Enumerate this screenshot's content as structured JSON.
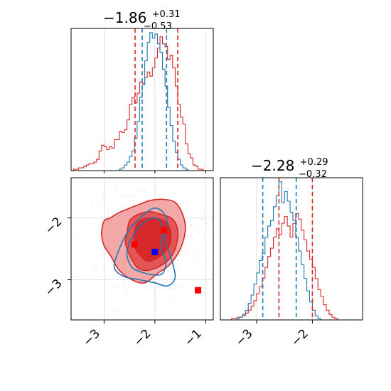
{
  "chart_data": [
    {
      "type": "histogram",
      "panel": "marginal-1",
      "title": {
        "value": "−1.86",
        "upper": "+0.31",
        "lower": "−0.53"
      },
      "xlim": [
        -3.65,
        -0.85
      ],
      "grid": true,
      "series": [
        {
          "color": "#d62728",
          "bins": [
            [
              -3.65,
              0.0
            ],
            [
              -3.6,
              0.01
            ],
            [
              -3.55,
              0.01
            ],
            [
              -3.5,
              0.02
            ],
            [
              -3.45,
              0.02
            ],
            [
              -3.4,
              0.03
            ],
            [
              -3.35,
              0.04
            ],
            [
              -3.3,
              0.05
            ],
            [
              -3.25,
              0.05
            ],
            [
              -3.2,
              0.06
            ],
            [
              -3.15,
              0.08
            ],
            [
              -3.1,
              0.14
            ],
            [
              -3.05,
              0.18
            ],
            [
              -3.0,
              0.17
            ],
            [
              -2.95,
              0.15
            ],
            [
              -2.9,
              0.17
            ],
            [
              -2.85,
              0.16
            ],
            [
              -2.8,
              0.22
            ],
            [
              -2.75,
              0.22
            ],
            [
              -2.7,
              0.28
            ],
            [
              -2.65,
              0.27
            ],
            [
              -2.6,
              0.29
            ],
            [
              -2.55,
              0.36
            ],
            [
              -2.5,
              0.47
            ],
            [
              -2.45,
              0.52
            ],
            [
              -2.4,
              0.48
            ],
            [
              -2.35,
              0.55
            ],
            [
              -2.3,
              0.63
            ],
            [
              -2.25,
              0.62
            ],
            [
              -2.2,
              0.66
            ],
            [
              -2.15,
              0.7
            ],
            [
              -2.1,
              0.67
            ],
            [
              -2.05,
              0.73
            ],
            [
              -2.0,
              0.8
            ],
            [
              -1.95,
              0.87
            ],
            [
              -1.9,
              0.95
            ],
            [
              -1.85,
              0.9
            ],
            [
              -1.8,
              0.88
            ],
            [
              -1.75,
              0.79
            ],
            [
              -1.7,
              0.82
            ],
            [
              -1.65,
              0.73
            ],
            [
              -1.6,
              0.6
            ],
            [
              -1.55,
              0.47
            ],
            [
              -1.5,
              0.38
            ],
            [
              -1.45,
              0.33
            ],
            [
              -1.4,
              0.19
            ],
            [
              -1.35,
              0.12
            ],
            [
              -1.3,
              0.09
            ],
            [
              -1.25,
              0.04
            ],
            [
              -1.2,
              0.03
            ],
            [
              -1.15,
              0.01
            ],
            [
              -1.1,
              0.01
            ],
            [
              -1.05,
              0.0
            ]
          ],
          "quantiles": [
            -2.39,
            -1.55
          ]
        },
        {
          "color": "#1f77b4",
          "bins": [
            [
              -2.75,
              0.0
            ],
            [
              -2.7,
              0.01
            ],
            [
              -2.65,
              0.02
            ],
            [
              -2.6,
              0.04
            ],
            [
              -2.55,
              0.06
            ],
            [
              -2.5,
              0.1
            ],
            [
              -2.45,
              0.14
            ],
            [
              -2.4,
              0.23
            ],
            [
              -2.35,
              0.35
            ],
            [
              -2.3,
              0.52
            ],
            [
              -2.25,
              0.61
            ],
            [
              -2.2,
              0.78
            ],
            [
              -2.15,
              0.91
            ],
            [
              -2.1,
              0.98
            ],
            [
              -2.05,
              0.94
            ],
            [
              -2.0,
              0.97
            ],
            [
              -1.95,
              0.9
            ],
            [
              -1.9,
              0.84
            ],
            [
              -1.85,
              0.72
            ],
            [
              -1.8,
              0.6
            ],
            [
              -1.75,
              0.45
            ],
            [
              -1.7,
              0.32
            ],
            [
              -1.65,
              0.21
            ],
            [
              -1.6,
              0.13
            ],
            [
              -1.55,
              0.08
            ],
            [
              -1.5,
              0.04
            ],
            [
              -1.45,
              0.02
            ],
            [
              -1.4,
              0.01
            ],
            [
              -1.35,
              0.0
            ]
          ],
          "quantiles": [
            -2.25,
            -1.77
          ]
        }
      ]
    },
    {
      "type": "histogram",
      "panel": "marginal-2",
      "title": {
        "value": "−2.28",
        "upper": "+0.29",
        "lower": "−0.32"
      },
      "xlim": [
        -3.65,
        -1.1
      ],
      "xticks": [
        -3,
        -2
      ],
      "xtick_labels": [
        "−3",
        "−2"
      ],
      "grid": true,
      "series": [
        {
          "color": "#d62728",
          "bins": [
            [
              -3.5,
              0.0
            ],
            [
              -3.45,
              0.01
            ],
            [
              -3.4,
              0.01
            ],
            [
              -3.35,
              0.02
            ],
            [
              -3.3,
              0.02
            ],
            [
              -3.25,
              0.03
            ],
            [
              -3.2,
              0.05
            ],
            [
              -3.15,
              0.07
            ],
            [
              -3.1,
              0.1
            ],
            [
              -3.05,
              0.14
            ],
            [
              -3.0,
              0.19
            ],
            [
              -2.95,
              0.24
            ],
            [
              -2.9,
              0.3
            ],
            [
              -2.85,
              0.38
            ],
            [
              -2.8,
              0.46
            ],
            [
              -2.75,
              0.52
            ],
            [
              -2.7,
              0.6
            ],
            [
              -2.65,
              0.66
            ],
            [
              -2.6,
              0.62
            ],
            [
              -2.55,
              0.7
            ],
            [
              -2.5,
              0.75
            ],
            [
              -2.45,
              0.68
            ],
            [
              -2.4,
              0.6
            ],
            [
              -2.35,
              0.7
            ],
            [
              -2.3,
              0.77
            ],
            [
              -2.25,
              0.73
            ],
            [
              -2.2,
              0.65
            ],
            [
              -2.15,
              0.58
            ],
            [
              -2.1,
              0.5
            ],
            [
              -2.05,
              0.44
            ],
            [
              -2.0,
              0.38
            ],
            [
              -1.95,
              0.3
            ],
            [
              -1.9,
              0.22
            ],
            [
              -1.85,
              0.17
            ],
            [
              -1.8,
              0.11
            ],
            [
              -1.75,
              0.07
            ],
            [
              -1.7,
              0.04
            ],
            [
              -1.65,
              0.02
            ],
            [
              -1.6,
              0.01
            ],
            [
              -1.55,
              0.0
            ]
          ],
          "quantiles": [
            -2.6,
            -2.0
          ]
        },
        {
          "color": "#1f77b4",
          "bins": [
            [
              -3.4,
              0.0
            ],
            [
              -3.35,
              0.01
            ],
            [
              -3.3,
              0.02
            ],
            [
              -3.25,
              0.04
            ],
            [
              -3.2,
              0.07
            ],
            [
              -3.15,
              0.12
            ],
            [
              -3.1,
              0.18
            ],
            [
              -3.05,
              0.26
            ],
            [
              -3.0,
              0.34
            ],
            [
              -2.95,
              0.43
            ],
            [
              -2.9,
              0.48
            ],
            [
              -2.85,
              0.6
            ],
            [
              -2.8,
              0.68
            ],
            [
              -2.75,
              0.72
            ],
            [
              -2.7,
              0.82
            ],
            [
              -2.65,
              0.9
            ],
            [
              -2.6,
              1.0
            ],
            [
              -2.55,
              0.85
            ],
            [
              -2.5,
              0.93
            ],
            [
              -2.45,
              0.86
            ],
            [
              -2.4,
              0.78
            ],
            [
              -2.35,
              0.72
            ],
            [
              -2.3,
              0.6
            ],
            [
              -2.25,
              0.5
            ],
            [
              -2.2,
              0.4
            ],
            [
              -2.15,
              0.3
            ],
            [
              -2.1,
              0.21
            ],
            [
              -2.05,
              0.13
            ],
            [
              -2.0,
              0.07
            ],
            [
              -1.95,
              0.03
            ],
            [
              -1.9,
              0.01
            ],
            [
              -1.85,
              0.0
            ]
          ],
          "quantiles": [
            -2.89,
            -2.29
          ]
        }
      ]
    },
    {
      "type": "contour",
      "panel": "joint",
      "xlim": [
        -3.65,
        -0.85
      ],
      "ylim": [
        -3.65,
        -1.35
      ],
      "xticks": [
        -3,
        -2,
        -1
      ],
      "xtick_labels": [
        "−3",
        "−2",
        "−1"
      ],
      "yticks": [
        -2,
        -3
      ],
      "ytick_labels": [
        "−2",
        "−3"
      ],
      "grid": true,
      "red_contours": [
        {
          "level": 1,
          "fill": "#f2a3a3",
          "points": [
            [
              -3.05,
              -2.25
            ],
            [
              -3.0,
              -2.05
            ],
            [
              -2.88,
              -2.0
            ],
            [
              -2.72,
              -1.92
            ],
            [
              -2.55,
              -1.86
            ],
            [
              -2.3,
              -1.78
            ],
            [
              -2.1,
              -1.72
            ],
            [
              -1.85,
              -1.7
            ],
            [
              -1.6,
              -1.75
            ],
            [
              -1.45,
              -1.95
            ],
            [
              -1.4,
              -2.2
            ],
            [
              -1.5,
              -2.5
            ],
            [
              -1.7,
              -2.75
            ],
            [
              -1.95,
              -2.9
            ],
            [
              -2.2,
              -3.05
            ],
            [
              -2.45,
              -3.0
            ],
            [
              -2.7,
              -2.85
            ],
            [
              -2.88,
              -2.6
            ],
            [
              -3.0,
              -2.45
            ]
          ]
        },
        {
          "level": 2,
          "fill": "#e35050",
          "points": [
            [
              -2.55,
              -2.25
            ],
            [
              -2.5,
              -2.05
            ],
            [
              -2.35,
              -1.95
            ],
            [
              -2.1,
              -1.9
            ],
            [
              -1.85,
              -1.95
            ],
            [
              -1.65,
              -2.02
            ],
            [
              -1.55,
              -2.2
            ],
            [
              -1.58,
              -2.45
            ],
            [
              -1.7,
              -2.65
            ],
            [
              -1.9,
              -2.78
            ],
            [
              -2.15,
              -2.85
            ],
            [
              -2.35,
              -2.8
            ],
            [
              -2.5,
              -2.6
            ],
            [
              -2.58,
              -2.4
            ]
          ]
        },
        {
          "level": 3,
          "fill": "#d62728",
          "points": [
            [
              -2.4,
              -2.2
            ],
            [
              -2.3,
              -2.05
            ],
            [
              -2.1,
              -2.0
            ],
            [
              -1.9,
              -2.02
            ],
            [
              -1.75,
              -2.1
            ],
            [
              -1.68,
              -2.3
            ],
            [
              -1.75,
              -2.5
            ],
            [
              -1.95,
              -2.65
            ],
            [
              -2.15,
              -2.7
            ],
            [
              -2.3,
              -2.6
            ],
            [
              -2.4,
              -2.45
            ]
          ]
        }
      ],
      "blue_contours": [
        {
          "level": 1,
          "points": [
            [
              -2.55,
              -2.25
            ],
            [
              -2.35,
              -2.05
            ],
            [
              -2.05,
              -1.85
            ],
            [
              -1.85,
              -1.9
            ],
            [
              -1.75,
              -2.1
            ],
            [
              -1.8,
              -2.35
            ],
            [
              -1.7,
              -2.6
            ],
            [
              -1.6,
              -2.95
            ],
            [
              -1.75,
              -3.1
            ],
            [
              -2.0,
              -3.05
            ],
            [
              -2.3,
              -3.0
            ],
            [
              -2.6,
              -2.95
            ],
            [
              -2.8,
              -2.8
            ],
            [
              -2.7,
              -2.5
            ]
          ]
        },
        {
          "level": 2,
          "points": [
            [
              -2.4,
              -2.25
            ],
            [
              -2.25,
              -2.1
            ],
            [
              -2.05,
              -2.0
            ],
            [
              -1.9,
              -2.05
            ],
            [
              -1.85,
              -2.25
            ],
            [
              -1.88,
              -2.5
            ],
            [
              -1.78,
              -2.7
            ],
            [
              -1.85,
              -2.9
            ],
            [
              -2.05,
              -2.92
            ],
            [
              -2.25,
              -2.88
            ],
            [
              -2.45,
              -2.8
            ],
            [
              -2.55,
              -2.6
            ],
            [
              -2.5,
              -2.4
            ]
          ]
        }
      ],
      "markers": [
        {
          "color": "#ff0000",
          "x": -2.4,
          "y": -2.43
        },
        {
          "color": "#ff0000",
          "x": -1.82,
          "y": -2.2
        },
        {
          "color": "#ff0000",
          "x": -1.15,
          "y": -3.17
        },
        {
          "color": "#0000ff",
          "x": -2.0,
          "y": -2.55
        }
      ]
    }
  ]
}
